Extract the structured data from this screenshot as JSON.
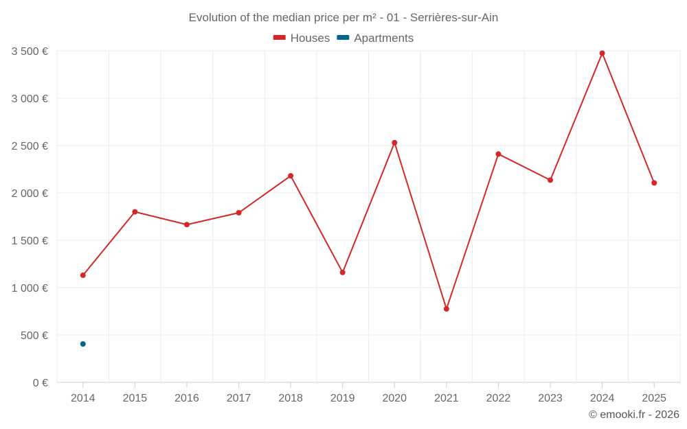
{
  "chart_data": {
    "type": "line",
    "title": "Evolution of the median price per m² - 01 - Serrières-sur-Ain",
    "categories": [
      "2014",
      "2015",
      "2016",
      "2017",
      "2018",
      "2019",
      "2020",
      "2021",
      "2022",
      "2023",
      "2024",
      "2025"
    ],
    "series": [
      {
        "name": "Houses",
        "color": "#d62728",
        "values": [
          1130,
          1800,
          1665,
          1790,
          2180,
          1160,
          2530,
          775,
          2410,
          2135,
          3475,
          2105
        ]
      },
      {
        "name": "Apartments",
        "color": "#05668d",
        "values": [
          405,
          null,
          null,
          null,
          null,
          null,
          null,
          null,
          null,
          null,
          null,
          null
        ]
      }
    ],
    "ylim": [
      0,
      3500
    ],
    "yticks": [
      0,
      500,
      1000,
      1500,
      2000,
      2500,
      3000,
      3500
    ],
    "ytick_labels": [
      "0 €",
      "500 €",
      "1 000 €",
      "1 500 €",
      "2 000 €",
      "2 500 €",
      "3 000 €",
      "3 500 €"
    ],
    "grid": true,
    "legend_position": "top-center",
    "credit": "© emooki.fr - 2026"
  }
}
